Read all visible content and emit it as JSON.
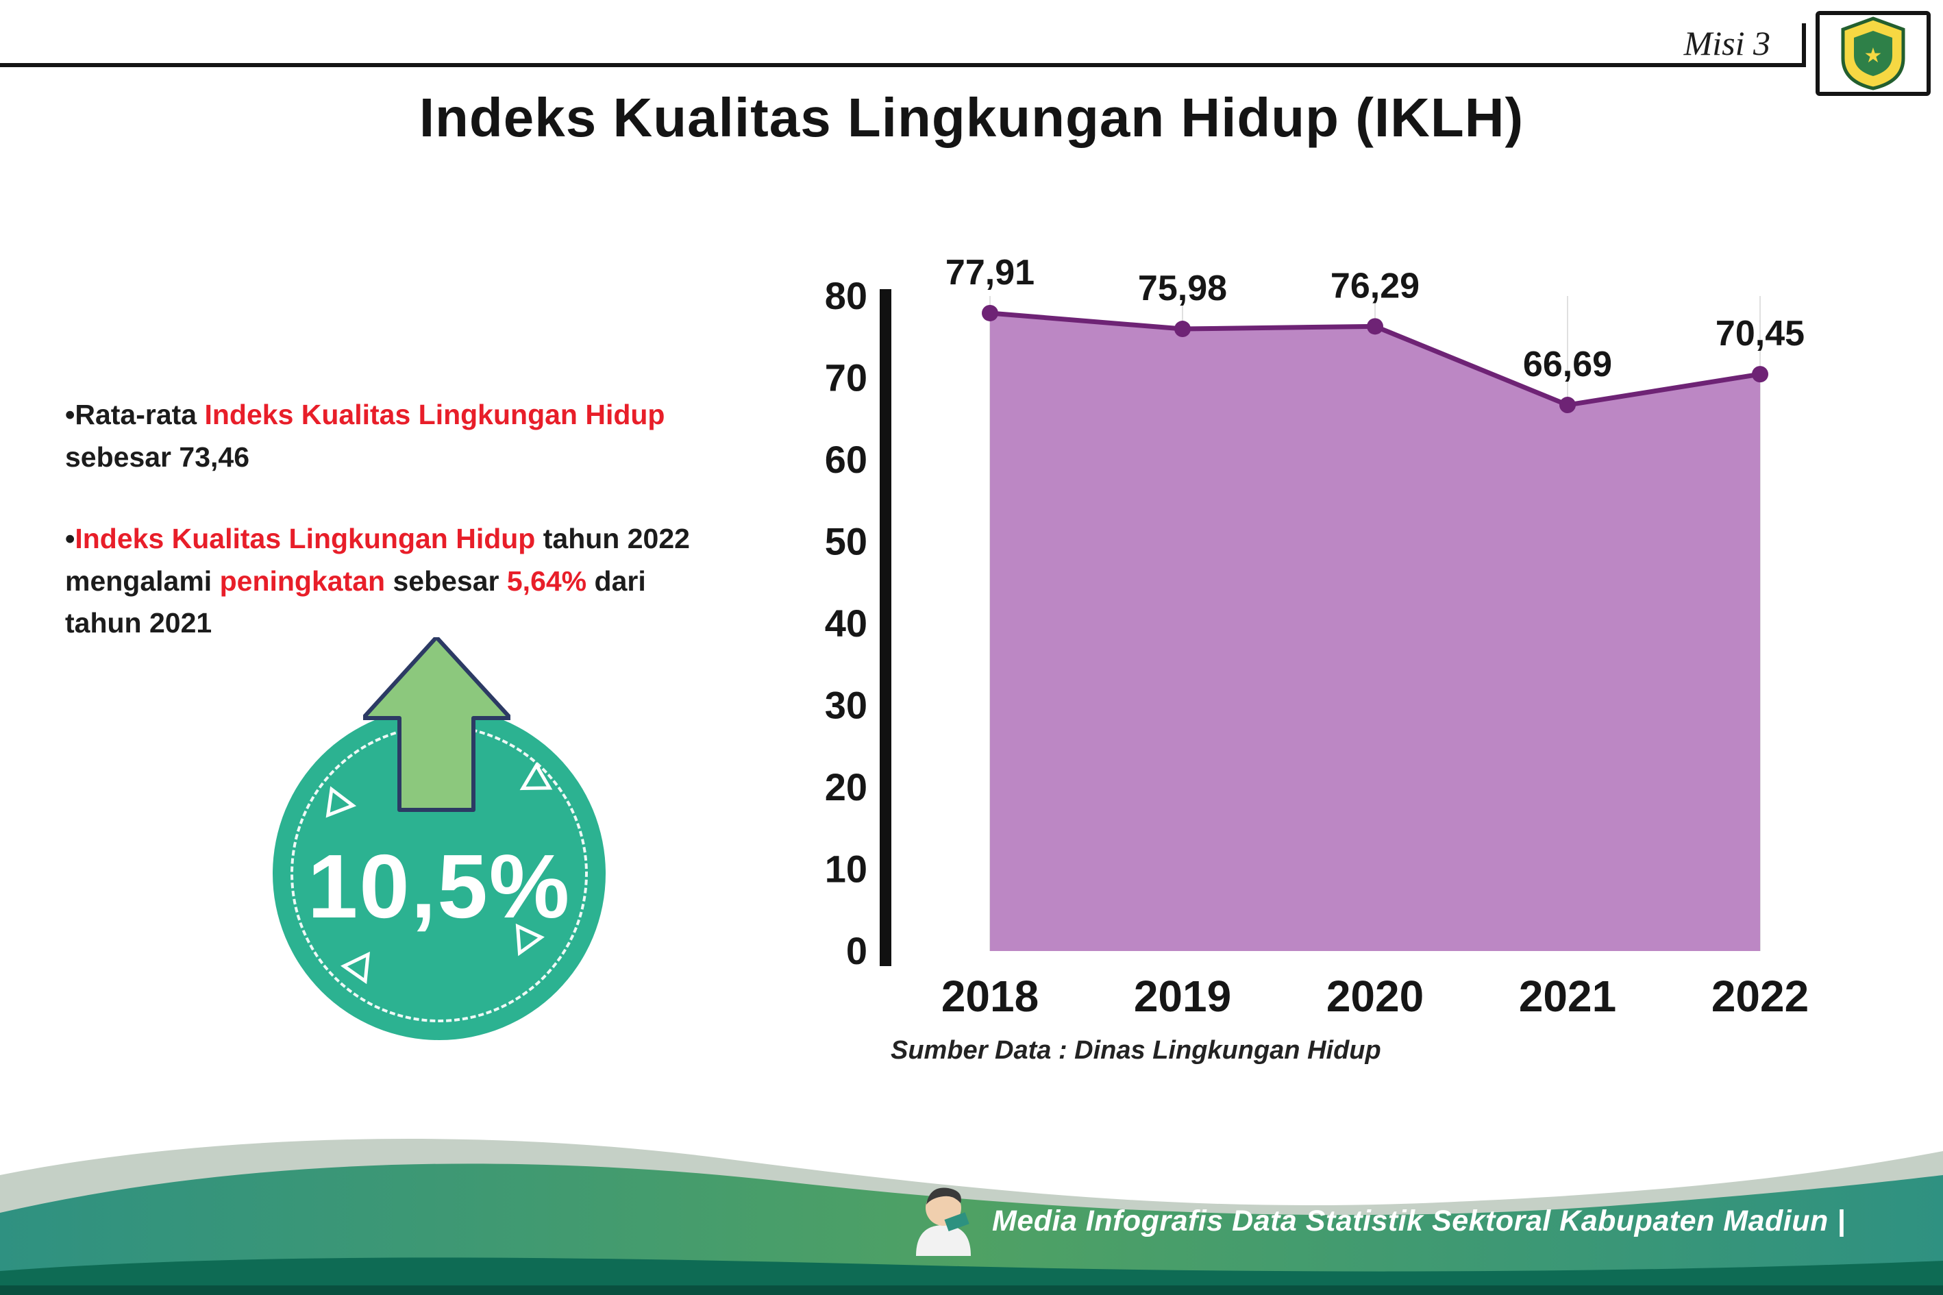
{
  "header": {
    "misi_label": "Misi 3",
    "title": "Indeks Kualitas Lingkungan Hidup (IKLH)"
  },
  "bullets": {
    "b1": [
      {
        "t": "•Rata-rata "
      },
      {
        "t": "Indeks Kualitas Lingkungan Hidup",
        "red": true
      },
      {
        "t": "\nsebesar 73,46"
      }
    ],
    "b2": [
      {
        "t": "•"
      },
      {
        "t": "Indeks Kualitas Lingkungan Hidup",
        "red": true
      },
      {
        "t": " tahun 2022\nmengalami "
      },
      {
        "t": "peningkatan",
        "red": true
      },
      {
        "t": " sebesar "
      },
      {
        "t": "5,64%",
        "red": true
      },
      {
        "t": " dari\ntahun 2021"
      }
    ]
  },
  "badge": {
    "value": "10,5%"
  },
  "chart_data": {
    "type": "area",
    "title": "",
    "categories": [
      "2018",
      "2019",
      "2020",
      "2021",
      "2022"
    ],
    "values": [
      77.91,
      75.98,
      76.29,
      66.69,
      70.45
    ],
    "value_labels": [
      "77,91",
      "75,98",
      "76,29",
      "66,69",
      "70,45"
    ],
    "ylim": [
      0,
      80
    ],
    "yticks": [
      0,
      10,
      20,
      30,
      40,
      50,
      60,
      70,
      80
    ],
    "legend": "none",
    "grid": "vertical-light",
    "colors": {
      "area": "#bc87c4",
      "line": "#6e2375",
      "dot": "#6e2375",
      "grid": "#e0e0e0",
      "axis": "#111111",
      "label": "#161616"
    }
  },
  "source_note": "Sumber Data : Dinas Lingkungan Hidup",
  "footer": {
    "credit": "Media Infografis Data Statistik Sektoral Kabupaten Madiun |"
  },
  "accents": {
    "red": "#e81e29",
    "teal_badge": "#2cb291",
    "arrow_green": "#8cc87d",
    "footer_teal": "#2f9181",
    "footer_dark": "#0e6b54"
  }
}
